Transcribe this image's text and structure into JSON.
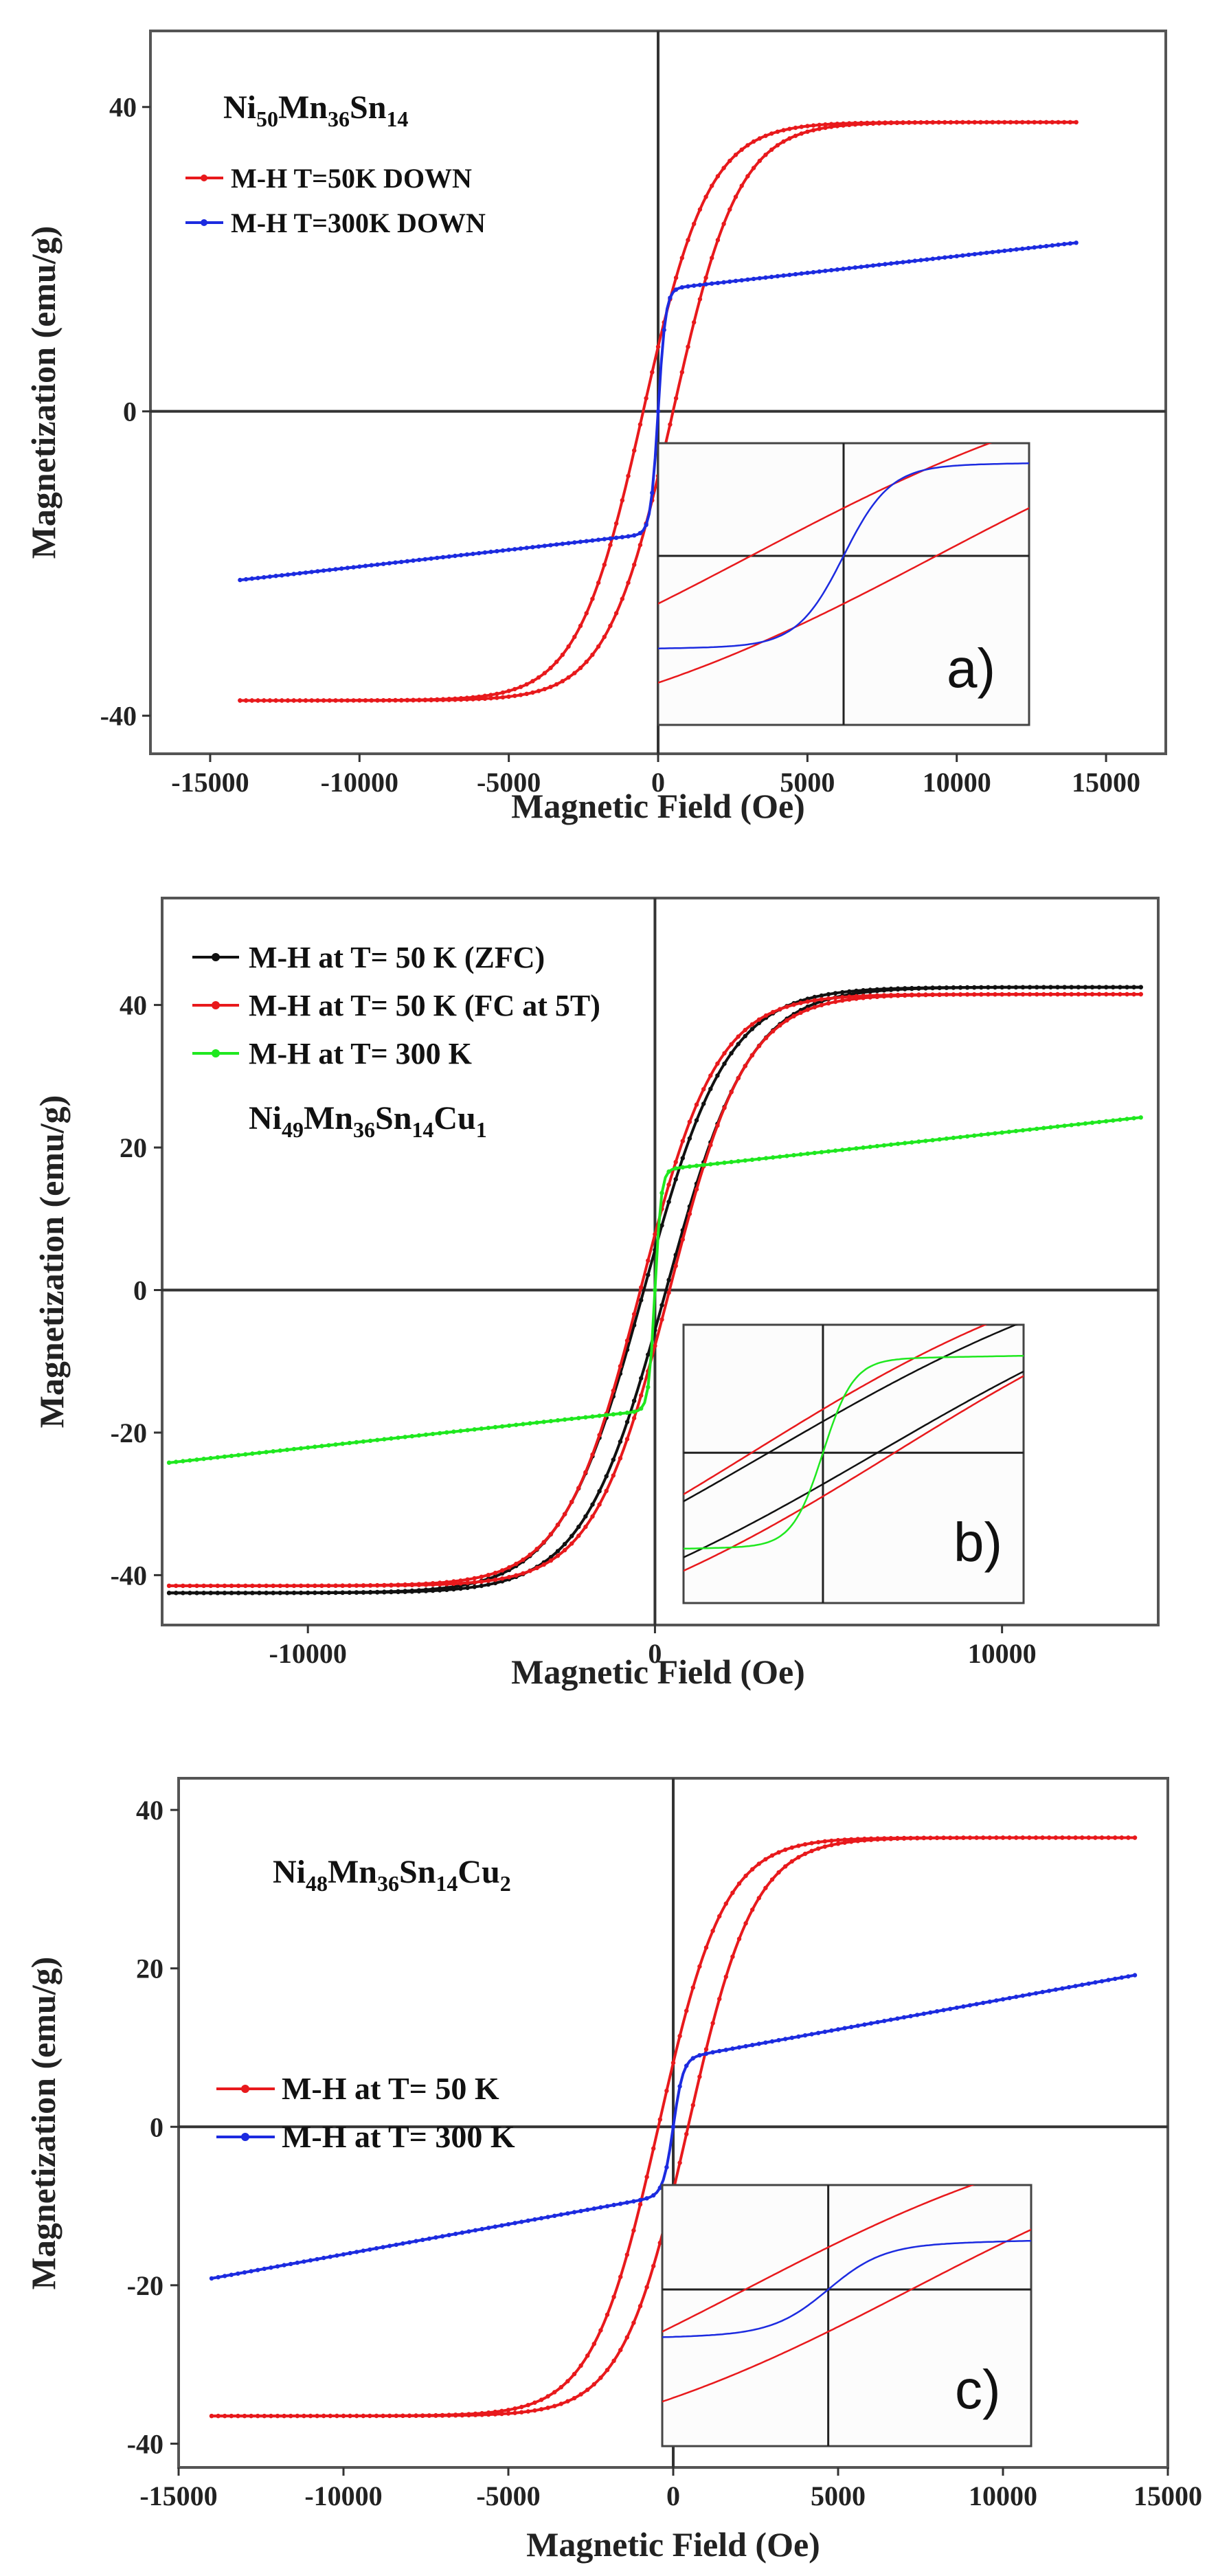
{
  "chart_data": [
    {
      "panel_id": "a",
      "panel_label": "a)",
      "type": "line",
      "title": [
        "Ni",
        "50",
        "Mn",
        "36",
        "Sn",
        "14"
      ],
      "xlabel": "Magnetic Field (Oe)",
      "ylabel": "Magnetization (emu/g)",
      "xlim": [
        -17000,
        17000
      ],
      "ylim": [
        -45,
        50
      ],
      "xticks": [
        -15000,
        -10000,
        -5000,
        0,
        5000,
        10000,
        15000
      ],
      "xtick_labels": [
        "-15000",
        "-10000",
        "-5000",
        "0",
        "5000",
        "10000",
        "15000"
      ],
      "yticks": [
        -40,
        0,
        40
      ],
      "ytick_labels": [
        "-40",
        "0",
        "40"
      ],
      "legend_position": "top-left",
      "series": [
        {
          "name": "M-H T=50K DOWN",
          "color": "#e8191c",
          "kind": "loop",
          "Ms": 38,
          "Hc": 500,
          "H0": 2200,
          "k": 0.0,
          "Hmax": 14000
        },
        {
          "name": "M-H T=300K DOWN",
          "color": "#1c2be0",
          "kind": "soft",
          "Ms": 16,
          "Hc": 0,
          "H0": 250,
          "k": 0.00044,
          "Hmax": 14000
        }
      ],
      "inset": {
        "xlim": [
          -1000,
          1000
        ],
        "ylim": [
          -25,
          25
        ],
        "xzero": 0.5,
        "yzero": 0.4
      }
    },
    {
      "panel_id": "b",
      "panel_label": "b)",
      "type": "line",
      "title": [
        "Ni",
        "49",
        "Mn",
        "36",
        "Sn",
        "14",
        "Cu",
        "1"
      ],
      "xlabel": "Magnetic Field (Oe)",
      "ylabel": "Magnetization (emu/g)",
      "xlim": [
        -14200,
        14500
      ],
      "ylim": [
        -47,
        55
      ],
      "xticks": [
        -10000,
        0,
        10000
      ],
      "xtick_labels": [
        "-10000",
        "0",
        "10000"
      ],
      "yticks": [
        -40,
        -20,
        0,
        20,
        40
      ],
      "ytick_labels": [
        "-40",
        "-20",
        "0",
        "20",
        "40"
      ],
      "legend_position": "top-left",
      "series": [
        {
          "name": "M-H at T= 50 K (ZFC)",
          "color": "#111111",
          "kind": "loop",
          "Ms": 42.5,
          "Hc": 320,
          "H0": 2400,
          "k": 0.0,
          "Hmax": 14000
        },
        {
          "name": "M-H at T= 50 K (FC at 5T)",
          "color": "#e8191c",
          "kind": "loop",
          "Ms": 41.5,
          "Hc": 420,
          "H0": 2200,
          "k": 0.0,
          "Hmax": 14000
        },
        {
          "name": "M-H at T= 300 K",
          "color": "#1fe81f",
          "kind": "soft",
          "Ms": 16.8,
          "Hc": 0,
          "H0": 180,
          "k": 0.00053,
          "Hmax": 14000
        }
      ],
      "inset": {
        "xlim": [
          -1000,
          1000
        ],
        "ylim": [
          -25,
          25
        ],
        "xzero": 0.41,
        "yzero": 0.46
      }
    },
    {
      "panel_id": "c",
      "panel_label": "c)",
      "type": "line",
      "title": [
        "Ni",
        "48",
        "Mn",
        "36",
        "Sn",
        "14",
        "Cu",
        "2"
      ],
      "xlabel": "Magnetic Field (Oe)",
      "ylabel": "Magnetization (emu/g)",
      "xlim": [
        -15000,
        15000
      ],
      "ylim": [
        -43,
        44
      ],
      "xticks": [
        -15000,
        -10000,
        -5000,
        0,
        5000,
        10000,
        15000
      ],
      "xtick_labels": [
        "-15000",
        "-10000",
        "-5000",
        "0",
        "5000",
        "10000",
        "15000"
      ],
      "yticks": [
        -40,
        -20,
        0,
        20,
        40
      ],
      "ytick_labels": [
        "-40",
        "-20",
        "0",
        "20",
        "40"
      ],
      "legend_position": "center-left",
      "series": [
        {
          "name": "M-H at T= 50 K",
          "color": "#e8191c",
          "kind": "loop",
          "Ms": 36.5,
          "Hc": 450,
          "H0": 2000,
          "k": 0.0,
          "Hmax": 14000
        },
        {
          "name": "M-H at T= 300 K",
          "color": "#1c2be0",
          "kind": "soft",
          "Ms": 8.5,
          "Hc": 0,
          "H0": 300,
          "k": 0.00076,
          "Hmax": 14000
        }
      ],
      "inset": {
        "xlim": [
          -1000,
          1000
        ],
        "ylim": [
          -25,
          25
        ],
        "xzero": 0.45,
        "yzero": 0.4
      }
    }
  ]
}
